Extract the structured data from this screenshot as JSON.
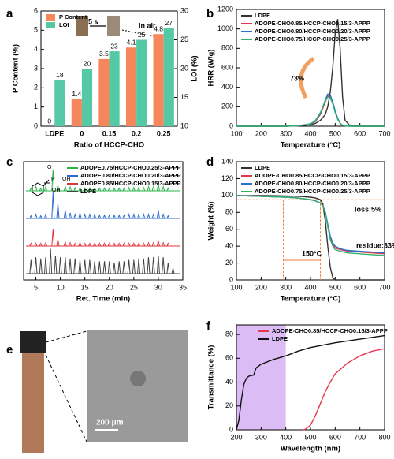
{
  "chart_data": [
    {
      "type": "bar",
      "panel": "a",
      "xlabel": "Ratio of HCCP-CHO",
      "ylabel": "P Content (%)",
      "y2label": "LOI (%)",
      "categories": [
        "LDPE",
        "0",
        "0.15",
        "0.2",
        "0.25"
      ],
      "series": [
        {
          "name": "P Content",
          "color": "#f6875d",
          "values": [
            0,
            1.4,
            3.5,
            4.1,
            4.8
          ]
        },
        {
          "name": "LOI",
          "color": "#55c9a5",
          "axis": "y2",
          "values": [
            18,
            20,
            23,
            25,
            27
          ]
        }
      ],
      "ylim": [
        0,
        6
      ],
      "yticks": [
        0,
        1,
        2,
        3,
        4,
        5,
        6
      ],
      "y2lim": [
        10,
        30
      ],
      "y2ticks": [
        10,
        15,
        20,
        25,
        30
      ],
      "legend": "upper left",
      "annotations": [
        "5 s",
        "in air"
      ]
    },
    {
      "type": "line",
      "panel": "b",
      "xlabel": "Temperature (°C)",
      "ylabel": "HRR (W/g)",
      "x": [
        100,
        200,
        300,
        350,
        400,
        420,
        440,
        460,
        470,
        480,
        490,
        500,
        510,
        520,
        530,
        540,
        560,
        600,
        700
      ],
      "series": [
        {
          "name": "LDPE",
          "color": "#333333",
          "values": [
            0,
            0,
            0,
            5,
            15,
            30,
            60,
            120,
            200,
            350,
            600,
            950,
            1100,
            800,
            300,
            60,
            5,
            0,
            0
          ]
        },
        {
          "name": "ADOPE-CHO0.85/HCCP-CHO0.15/3-APPP",
          "color": "#e8364f",
          "values": [
            0,
            0,
            0,
            5,
            20,
            50,
            120,
            250,
            310,
            300,
            240,
            150,
            80,
            30,
            10,
            5,
            0,
            0,
            0
          ]
        },
        {
          "name": "ADOPE-CHO0.80/HCCP-CHO0.20/3-APPP",
          "color": "#2f6fd0",
          "values": [
            0,
            0,
            0,
            5,
            20,
            55,
            130,
            270,
            330,
            320,
            250,
            160,
            80,
            30,
            10,
            5,
            0,
            0,
            0
          ]
        },
        {
          "name": "ADOPE-CHO0.75/HCCP-CHO0.25/3-APPP",
          "color": "#2db36b",
          "values": [
            0,
            0,
            0,
            5,
            25,
            60,
            140,
            260,
            300,
            290,
            230,
            140,
            70,
            30,
            10,
            5,
            0,
            0,
            0
          ]
        }
      ],
      "xlim": [
        100,
        700
      ],
      "xticks": [
        100,
        200,
        300,
        400,
        500,
        600,
        700
      ],
      "ylim": [
        0,
        1200
      ],
      "yticks": [
        0,
        200,
        400,
        600,
        800,
        1000,
        1200
      ],
      "legend": "upper left",
      "annotations": [
        "73%"
      ]
    },
    {
      "type": "stick",
      "panel": "c",
      "xlabel": "Ret. Time (min)",
      "series": [
        {
          "name": "ADOPE0.75/HCCP-CHO0.25/3-APPP",
          "color": "#29b44a",
          "x": [
            4,
            5,
            6,
            7,
            8.5,
            9.5,
            11,
            12,
            13,
            14,
            15,
            16,
            17,
            18,
            19,
            20,
            21,
            22,
            23,
            24,
            25,
            26,
            27,
            28,
            29,
            30,
            31,
            32
          ],
          "values": [
            0.1,
            0.15,
            0.1,
            0.15,
            0.75,
            0.2,
            0.15,
            0.15,
            0.12,
            0.12,
            0.1,
            0.1,
            0.1,
            0.1,
            0.1,
            0.1,
            0.1,
            0.1,
            0.1,
            0.12,
            0.12,
            0.12,
            0.12,
            0.15,
            0.15,
            0.25,
            0.15,
            0.1
          ]
        },
        {
          "name": "ADOPE0.80/HCCP-CHO0.20/3-APPP",
          "color": "#2a6ad0",
          "x": [
            4,
            5,
            6,
            7,
            8.5,
            9.5,
            11,
            12,
            13,
            14,
            15,
            16,
            17,
            18,
            19,
            20,
            21,
            22,
            23,
            24,
            25,
            26,
            27,
            28,
            29,
            30,
            31,
            32
          ],
          "values": [
            0.1,
            0.15,
            0.1,
            0.15,
            0.95,
            0.55,
            0.3,
            0.2,
            0.15,
            0.2,
            0.15,
            0.15,
            0.15,
            0.12,
            0.12,
            0.12,
            0.12,
            0.12,
            0.12,
            0.15,
            0.15,
            0.15,
            0.15,
            0.15,
            0.15,
            0.3,
            0.15,
            0.1
          ]
        },
        {
          "name": "ADOPE0.85/HCCP-CHO0.15/3-APPP",
          "color": "#e0343c",
          "x": [
            4,
            5,
            6,
            7,
            8.5,
            9.5,
            11,
            12,
            13,
            14,
            15,
            16,
            17,
            18,
            19,
            20,
            21,
            22,
            23,
            24,
            25,
            26,
            27,
            28,
            29,
            30,
            31,
            32
          ],
          "values": [
            0.1,
            0.1,
            0.1,
            0.12,
            0.6,
            0.25,
            0.15,
            0.12,
            0.1,
            0.12,
            0.1,
            0.1,
            0.1,
            0.1,
            0.1,
            0.1,
            0.1,
            0.1,
            0.1,
            0.1,
            0.1,
            0.1,
            0.1,
            0.12,
            0.12,
            0.2,
            0.12,
            0.1
          ]
        },
        {
          "name": "LDPE",
          "color": "#444444",
          "x": [
            4,
            5,
            6,
            7,
            8,
            9,
            10,
            11,
            12,
            13,
            14,
            15,
            16,
            17,
            18,
            19,
            20,
            21,
            22,
            23,
            24,
            25,
            26,
            27,
            28,
            29,
            30,
            31,
            32,
            33
          ],
          "values": [
            0.5,
            0.6,
            0.55,
            0.6,
            0.9,
            0.65,
            0.6,
            0.6,
            0.55,
            0.55,
            0.5,
            0.5,
            0.5,
            0.45,
            0.45,
            0.45,
            0.45,
            0.4,
            0.45,
            0.45,
            0.5,
            0.5,
            0.55,
            0.55,
            0.6,
            0.6,
            0.65,
            0.6,
            0.4,
            0.2
          ]
        }
      ],
      "xlim": [
        2.5,
        35
      ],
      "xticks": [
        5,
        10,
        15,
        20,
        25,
        30,
        35
      ],
      "legend": "upper left",
      "structure_labels": [
        "O",
        "P",
        "OH",
        "OH"
      ]
    },
    {
      "type": "line",
      "panel": "d",
      "xlabel": "Temperature (°C)",
      "ylabel": "Weight (%)",
      "x": [
        100,
        150,
        200,
        250,
        300,
        350,
        400,
        420,
        440,
        450,
        460,
        470,
        480,
        490,
        500,
        520,
        550,
        600,
        650,
        700
      ],
      "series": [
        {
          "name": "LDPE",
          "color": "#333333",
          "values": [
            100,
            100,
            100,
            99.8,
            99.5,
            99,
            98,
            97,
            95,
            90,
            70,
            40,
            15,
            3,
            0,
            0,
            0,
            0,
            0,
            0
          ]
        },
        {
          "name": "ADOPE-CHO0.85/HCCP-CHO0.15/3-APPP",
          "color": "#e8364f",
          "values": [
            100,
            99.5,
            99,
            98.5,
            98,
            97,
            95,
            93.5,
            91,
            88,
            80,
            65,
            50,
            42,
            38,
            36,
            34,
            33,
            32,
            31
          ]
        },
        {
          "name": "ADOPE-CHO0.80/HCCP-CHO0.20/3-APPP",
          "color": "#2f6fd0",
          "values": [
            100,
            99.5,
            99,
            98.5,
            98,
            97,
            95,
            93.5,
            91,
            88,
            80,
            66,
            52,
            44,
            40,
            37,
            35,
            34,
            33,
            32
          ]
        },
        {
          "name": "ADOPE-CHO0.75/HCCP-CHO0.25/3-APPP",
          "color": "#2db36b",
          "values": [
            100,
            99.5,
            99,
            98.5,
            98,
            97,
            95,
            93.5,
            91,
            88,
            79,
            63,
            48,
            40,
            36,
            34,
            32,
            31,
            30,
            29
          ]
        }
      ],
      "xlim": [
        100,
        700
      ],
      "xticks": [
        100,
        200,
        300,
        400,
        500,
        600,
        700
      ],
      "ylim": [
        0,
        140
      ],
      "yticks": [
        0,
        20,
        40,
        60,
        80,
        100,
        120,
        140
      ],
      "hlines": [
        95
      ],
      "vlines": [
        290,
        440
      ],
      "refcolor": "#f08040",
      "legend": "upper left",
      "annotations": [
        "loss:5%",
        "residue:33%",
        "150°C"
      ]
    },
    {
      "type": "line",
      "panel": "f",
      "xlabel": "Wavelength (nm)",
      "ylabel": "Transmittance (%)",
      "series": [
        {
          "name": "ADOPE-CHO0.85/HCCP-CHO0.15/3-APPP",
          "color": "#e8364f",
          "x": [
            470,
            480,
            500,
            520,
            540,
            560,
            580,
            600,
            650,
            700,
            750,
            800
          ],
          "values": [
            0,
            0.5,
            4,
            12,
            22,
            32,
            40,
            47,
            56,
            62,
            66,
            68
          ]
        },
        {
          "name": "LDPE",
          "color": "#111111",
          "x": [
            200,
            210,
            220,
            230,
            240,
            250,
            270,
            280,
            300,
            350,
            400,
            450,
            500,
            600,
            700,
            800
          ],
          "values": [
            0,
            8,
            25,
            38,
            43,
            45,
            46,
            52,
            55,
            59,
            62,
            66,
            69,
            73,
            76,
            79
          ]
        }
      ],
      "xlim": [
        200,
        800
      ],
      "xticks": [
        200,
        300,
        400,
        500,
        600,
        700,
        800
      ],
      "ylim": [
        0,
        88
      ],
      "yticks": [
        0,
        20,
        40,
        60,
        80
      ],
      "shade": [
        200,
        400
      ],
      "shade_color": "#dcbcf5",
      "legend": "upper right"
    }
  ],
  "photo": {
    "panel": "e",
    "scale_bar": "200 μm"
  }
}
